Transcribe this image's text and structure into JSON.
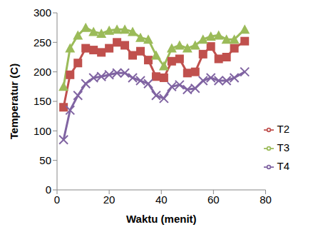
{
  "chart_data": {
    "type": "line",
    "x_label": "Waktu (menit)",
    "y_label": "Temperatur (C)",
    "x": [
      2.5,
      5,
      8,
      11,
      14,
      17,
      20,
      23,
      26,
      29,
      32,
      35,
      38,
      41,
      44,
      47,
      50,
      53,
      56,
      59,
      62,
      65,
      68,
      72
    ],
    "series": [
      {
        "name": "T2",
        "color": "#c0504d",
        "marker": "square",
        "values": [
          140,
          195,
          215,
          240,
          237,
          233,
          240,
          250,
          245,
          228,
          235,
          220,
          192,
          190,
          218,
          222,
          198,
          200,
          230,
          243,
          222,
          225,
          240,
          252
        ]
      },
      {
        "name": "T3",
        "color": "#9bbb59",
        "marker": "triangle",
        "values": [
          175,
          240,
          262,
          275,
          268,
          265,
          270,
          272,
          272,
          268,
          258,
          255,
          228,
          210,
          240,
          245,
          240,
          245,
          255,
          260,
          262,
          255,
          255,
          272
        ]
      },
      {
        "name": "T4",
        "color": "#8064a2",
        "marker": "x",
        "values": [
          85,
          135,
          160,
          180,
          190,
          192,
          195,
          198,
          198,
          190,
          185,
          180,
          160,
          155,
          175,
          178,
          170,
          172,
          185,
          190,
          185,
          185,
          190,
          200
        ]
      }
    ],
    "xlim": [
      0,
      80
    ],
    "xticks": [
      0,
      20,
      40,
      60,
      80
    ],
    "ylim": [
      0,
      300
    ],
    "yticks": [
      0,
      50,
      100,
      150,
      200,
      250,
      300
    ],
    "grid": false,
    "legend": "right"
  }
}
